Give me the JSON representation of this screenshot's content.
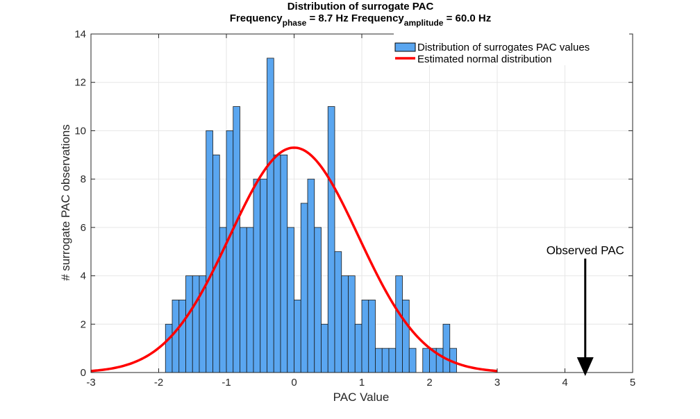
{
  "chart_data": {
    "type": "bar",
    "title": "Distribution of surrogate PAC",
    "subtitle": {
      "p1": "Frequency",
      "s1": "phase",
      "p2": " = 8.7 Hz Frequency",
      "s2": "amplitude",
      "p3": " = 60.0 Hz"
    },
    "xlabel": "PAC Value",
    "ylabel": "# surrogate PAC observations",
    "xlim": [
      -3,
      5
    ],
    "ylim": [
      0,
      14
    ],
    "xticks": [
      -3,
      -2,
      -1,
      0,
      1,
      2,
      3,
      4,
      5
    ],
    "yticks": [
      0,
      2,
      4,
      6,
      8,
      10,
      12,
      14
    ],
    "grid": true,
    "legend_position": "top-right",
    "bin_width": 0.1,
    "bin_start": -1.9,
    "bar_values": [
      2,
      3,
      3,
      4,
      4,
      4,
      10,
      9,
      6,
      10,
      11,
      6,
      6,
      8,
      8,
      13,
      9,
      9,
      6,
      3,
      7,
      8,
      6,
      2,
      11,
      5,
      4,
      4,
      2,
      3,
      3,
      1,
      1,
      1,
      4,
      3,
      1,
      0,
      1,
      1,
      1,
      2,
      1
    ],
    "series": [
      {
        "name": "Distribution of surrogates PAC values",
        "color": "#5aa6f0"
      },
      {
        "name": "Estimated normal distribution",
        "color": "#ff0000",
        "mean": 0.0,
        "sd": 0.95,
        "peak": 9.3,
        "x_range": [
          -3,
          3
        ]
      }
    ],
    "annotation": {
      "text": "Observed PAC",
      "x": 4.3,
      "y_top": 5.0,
      "y_bottom": 0
    }
  }
}
